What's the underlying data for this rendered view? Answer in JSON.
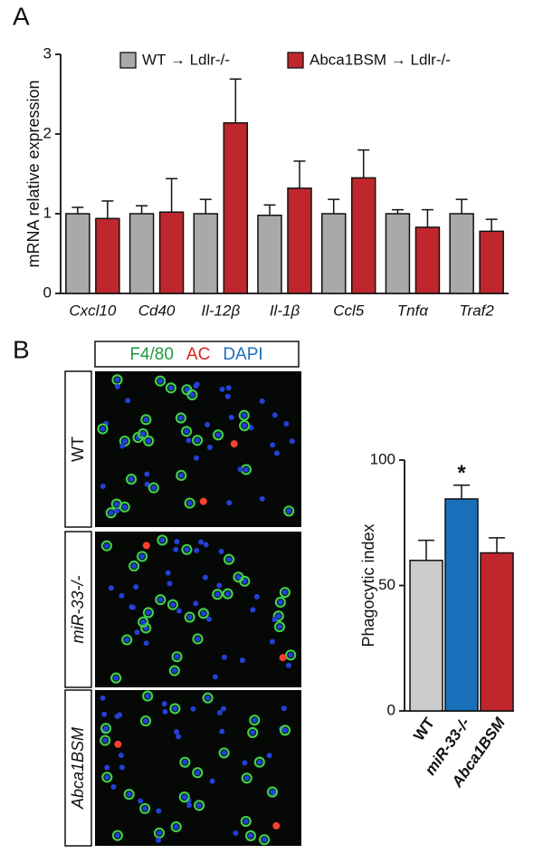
{
  "panel_labels": [
    "A",
    "B"
  ],
  "chart_data": [
    {
      "type": "bar",
      "y_label": "mRNA relative expression",
      "categories": [
        "Cxcl10",
        "Cd40",
        "Il-12β",
        "Il-1β",
        "Ccl5",
        "Tnfα",
        "Traf2"
      ],
      "series": [
        {
          "name": "WT → Ldlr-/-",
          "color": "#a9a9a9",
          "values": [
            1.0,
            1.0,
            1.0,
            0.98,
            1.0,
            1.0,
            1.0
          ],
          "errors": [
            0.08,
            0.1,
            0.18,
            0.13,
            0.18,
            0.05,
            0.18
          ]
        },
        {
          "name": "Abca1BSM → Ldlr-/-",
          "color": "#c0272d",
          "values": [
            0.94,
            1.02,
            2.14,
            1.32,
            1.45,
            0.83,
            0.78
          ],
          "errors": [
            0.22,
            0.42,
            0.55,
            0.34,
            0.35,
            0.22,
            0.15
          ]
        }
      ],
      "ylim": [
        0,
        3
      ],
      "yticks": [
        0,
        1,
        2,
        3
      ]
    },
    {
      "type": "bar",
      "y_label": "Phagocytic index",
      "categories": [
        "WT",
        "miR-33-/-",
        "Abca1BSM"
      ],
      "values": [
        60,
        84.5,
        63
      ],
      "errors": [
        8,
        5.5,
        6
      ],
      "colors": [
        "#cbcbcb",
        "#1a6fba",
        "#c0272d"
      ],
      "annotation": "*",
      "ylim": [
        0,
        100
      ],
      "yticks": [
        0,
        50,
        100
      ]
    }
  ],
  "micrographs": {
    "stains": [
      {
        "text": "F4/80",
        "color": "#1e9a3c"
      },
      {
        "text": "AC",
        "color": "#e02020"
      },
      {
        "text": "DAPI",
        "color": "#1a6fba"
      }
    ],
    "rows": [
      "WT",
      "miR-33-/-",
      "Abca1BSM"
    ]
  }
}
